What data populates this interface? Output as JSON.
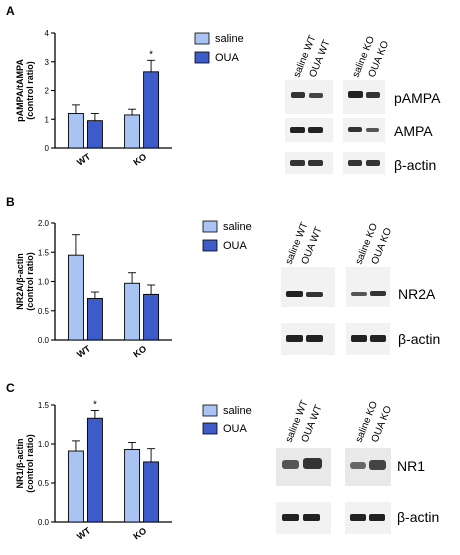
{
  "colors": {
    "saline": "#a9c4f2",
    "oua": "#3d5bc9",
    "axis": "#000000",
    "blot_bg": "#f2f2f2",
    "band": "#222222"
  },
  "panels": [
    {
      "letter": "A",
      "legend": [
        "saline",
        "OUA"
      ],
      "blot_headers": {
        "left": [
          "saline WT",
          "OUA WT"
        ],
        "right": [
          "saline KO",
          "OUA KO"
        ]
      },
      "blot_labels": [
        "pAMPA",
        "AMPA",
        "β-actin"
      ]
    },
    {
      "letter": "B",
      "legend": [
        "saline",
        "OUA"
      ],
      "blot_headers": {
        "left": [
          "saline WT",
          "OUA WT"
        ],
        "right": [
          "saline KO",
          "OUA KO"
        ]
      },
      "blot_labels": [
        "NR2A",
        "β-actin"
      ]
    },
    {
      "letter": "C",
      "legend": [
        "saline",
        "OUA"
      ],
      "blot_headers": {
        "left": [
          "saline WT",
          "OUA WT"
        ],
        "right": [
          "saline KO",
          "OUA KO"
        ]
      },
      "blot_labels": [
        "NR1",
        "β-actin"
      ]
    }
  ],
  "chart_data": [
    {
      "type": "bar",
      "ylabel": [
        "pAMPA/tAMPA",
        "(control ratio)"
      ],
      "categories": [
        "WT",
        "KO"
      ],
      "ylim": [
        0,
        4
      ],
      "yticks": [
        "0",
        "1",
        "2",
        "3",
        "4"
      ],
      "series": [
        {
          "name": "saline",
          "values": [
            1.2,
            1.15
          ],
          "errors": [
            0.3,
            0.2
          ]
        },
        {
          "name": "OUA",
          "values": [
            0.95,
            2.65
          ],
          "errors": [
            0.25,
            0.4
          ]
        }
      ],
      "significance": [
        {
          "category": 1,
          "series": 1,
          "mark": "*"
        }
      ]
    },
    {
      "type": "bar",
      "ylabel": [
        "NR2A/β-actin",
        "(control ratio)"
      ],
      "categories": [
        "WT",
        "KO"
      ],
      "ylim": [
        0,
        2.0
      ],
      "yticks": [
        "0.0",
        "0.5",
        "1.0",
        "1.5",
        "2.0"
      ],
      "series": [
        {
          "name": "saline",
          "values": [
            1.45,
            0.97
          ],
          "errors": [
            0.35,
            0.18
          ]
        },
        {
          "name": "OUA",
          "values": [
            0.71,
            0.78
          ],
          "errors": [
            0.11,
            0.16
          ]
        }
      ],
      "significance": []
    },
    {
      "type": "bar",
      "ylabel": [
        "NR1/β-actin",
        "(control ratio)"
      ],
      "categories": [
        "WT",
        "KO"
      ],
      "ylim": [
        0,
        1.5
      ],
      "yticks": [
        "0.0",
        "0.5",
        "1.0",
        "1.5"
      ],
      "series": [
        {
          "name": "saline",
          "values": [
            0.91,
            0.93
          ],
          "errors": [
            0.13,
            0.09
          ]
        },
        {
          "name": "OUA",
          "values": [
            1.33,
            0.77
          ],
          "errors": [
            0.1,
            0.17
          ]
        }
      ],
      "significance": [
        {
          "category": 0,
          "series": 1,
          "mark": "*"
        }
      ]
    }
  ]
}
